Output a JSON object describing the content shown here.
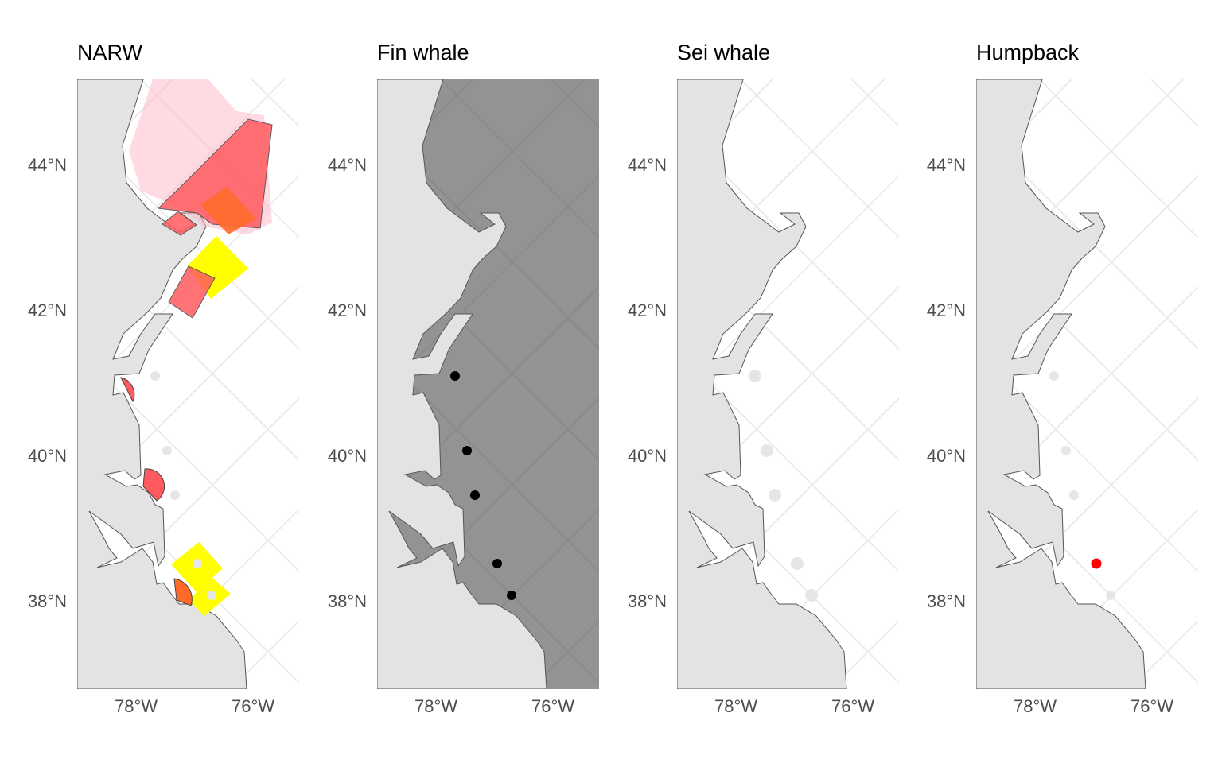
{
  "panels": [
    {
      "title": "NARW"
    },
    {
      "title": "Fin whale"
    },
    {
      "title": "Sei whale"
    },
    {
      "title": "Humpback"
    }
  ],
  "yticks": [
    {
      "value": 44,
      "label": "44°N"
    },
    {
      "value": 42,
      "label": "42°N"
    },
    {
      "value": 40,
      "label": "40°N"
    },
    {
      "value": 38,
      "label": "38°N"
    }
  ],
  "xticks": [
    {
      "value": -78,
      "label": "78°W"
    },
    {
      "value": -76,
      "label": "76°W"
    }
  ]
}
